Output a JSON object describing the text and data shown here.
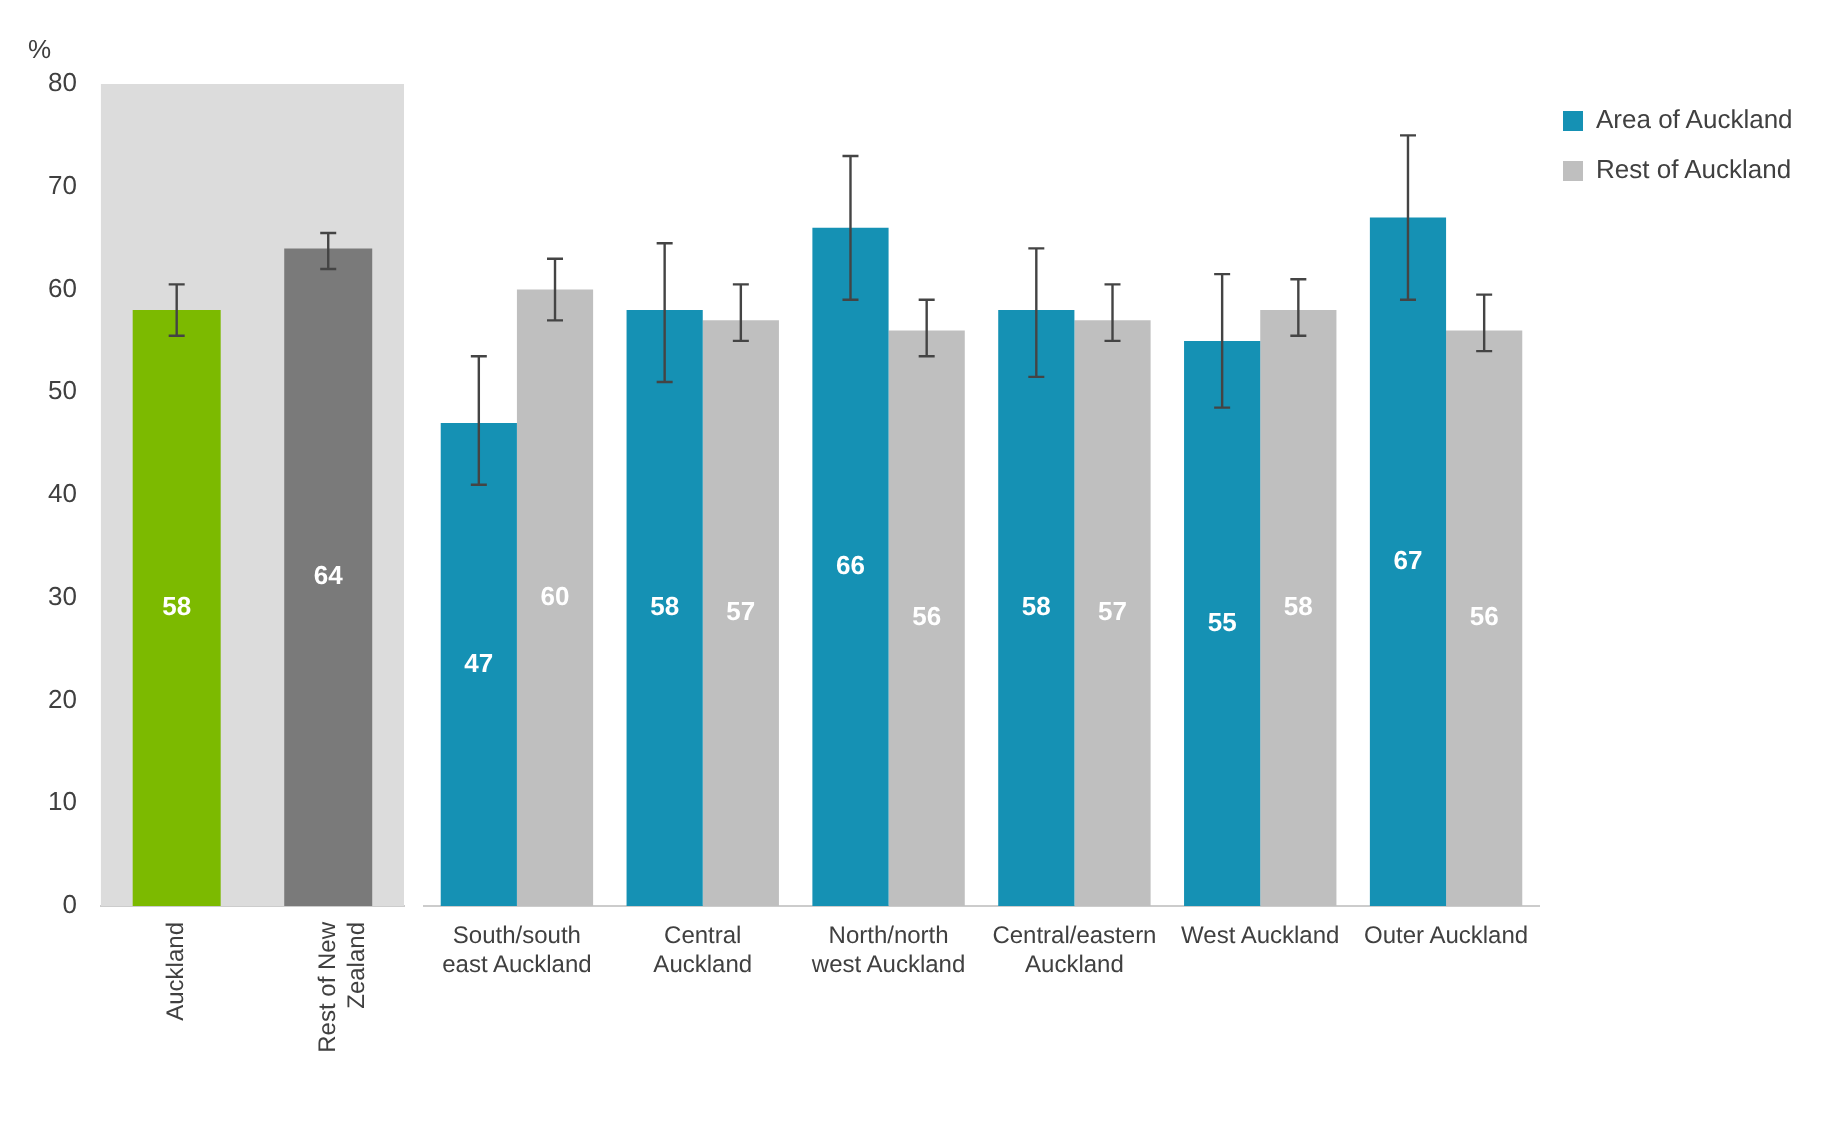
{
  "chart_data": [
    {
      "type": "bar",
      "ylabel": "%",
      "categories": [
        "Auckland",
        "Rest of New Zealand"
      ],
      "series": [
        {
          "colors": [
            "#7cba00",
            "#7a7a7a"
          ],
          "values": [
            58,
            64
          ],
          "errors": [
            [
              55.5,
              60.5
            ],
            [
              62,
              65.5
            ]
          ]
        }
      ],
      "bands": [
        {
          "axis": "x",
          "from": "Auckland",
          "to": "Rest of New Zealand",
          "color": "#dcdcdc"
        }
      ],
      "ylim": [
        0,
        80
      ],
      "yticks": [
        0,
        10,
        20,
        30,
        40,
        50,
        60,
        70,
        80
      ],
      "data_labels": true,
      "grid": false
    },
    {
      "type": "bar",
      "categories": [
        "South/south east Auckland",
        "Central Auckland",
        "North/north west Auckland",
        "Central/eastern Auckland",
        "West Auckland",
        "Outer Auckland"
      ],
      "series": [
        {
          "name": "Area of Auckland",
          "color": "#1591b4",
          "values": [
            47,
            58,
            66,
            58,
            55,
            67
          ],
          "errors": [
            [
              41,
              53.5
            ],
            [
              51,
              64.5
            ],
            [
              59,
              73
            ],
            [
              51.5,
              64
            ],
            [
              48.5,
              61.5
            ],
            [
              59,
              75
            ]
          ]
        },
        {
          "name": "Rest of Auckland",
          "color": "#bfbfbf",
          "values": [
            60,
            57,
            56,
            57,
            58,
            56
          ],
          "errors": [
            [
              57,
              63
            ],
            [
              55,
              60.5
            ],
            [
              53.5,
              59
            ],
            [
              55,
              60.5
            ],
            [
              55.5,
              61
            ],
            [
              54,
              59.5
            ]
          ]
        }
      ],
      "ylim": [
        0,
        80
      ],
      "yticks": [
        0,
        10,
        20,
        30,
        40,
        50,
        60,
        70,
        80
      ],
      "tick_labels": "x",
      "data_labels": true,
      "grid": false,
      "legend": "top right"
    }
  ]
}
